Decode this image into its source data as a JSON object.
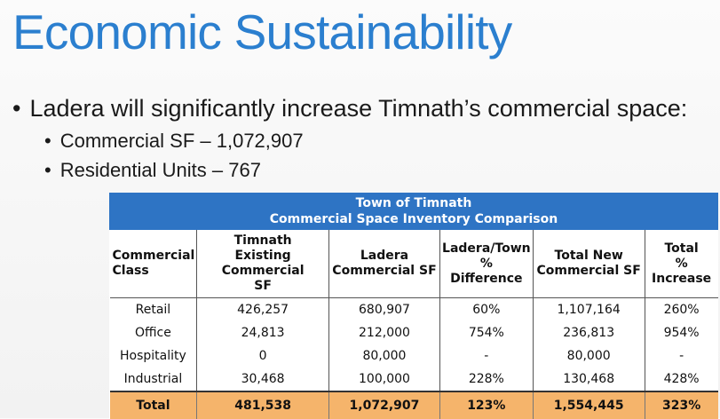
{
  "slide": {
    "title": "Economic Sustainability",
    "bullet_main": "Ladera will significantly increase Timnath’s commercial space:",
    "sub_bullets": [
      "Commercial SF – 1,072,907",
      "Residential Units – 767"
    ],
    "bullet_glyph": "•"
  },
  "table": {
    "title_line1": "Town of Timnath",
    "title_line2": "Commercial Space Inventory Comparison",
    "headers": [
      [
        "Commercial",
        "Class"
      ],
      [
        "Timnath",
        "Existing Commercial",
        "SF"
      ],
      [
        "Ladera",
        "Commercial SF"
      ],
      [
        "Ladera/Town",
        "% Difference"
      ],
      [
        "Total New",
        "Commercial SF"
      ],
      [
        "Total",
        "%",
        "Increase"
      ]
    ],
    "rows": [
      [
        "Retail",
        "426,257",
        "680,907",
        "60%",
        "1,107,164",
        "260%"
      ],
      [
        "Office",
        "24,813",
        "212,000",
        "754%",
        "236,813",
        "954%"
      ],
      [
        "Hospitality",
        "0",
        "80,000",
        "-",
        "80,000",
        "-"
      ],
      [
        "Industrial",
        "30,468",
        "100,000",
        "228%",
        "130,468",
        "428%"
      ]
    ],
    "total_row": [
      "Total",
      "481,538",
      "1,072,907",
      "123%",
      "1,554,445",
      "323%"
    ]
  },
  "colors": {
    "title_blue": "#2b7fcf",
    "table_header_blue": "#2e74c4",
    "total_row_orange": "#f5b46b"
  }
}
